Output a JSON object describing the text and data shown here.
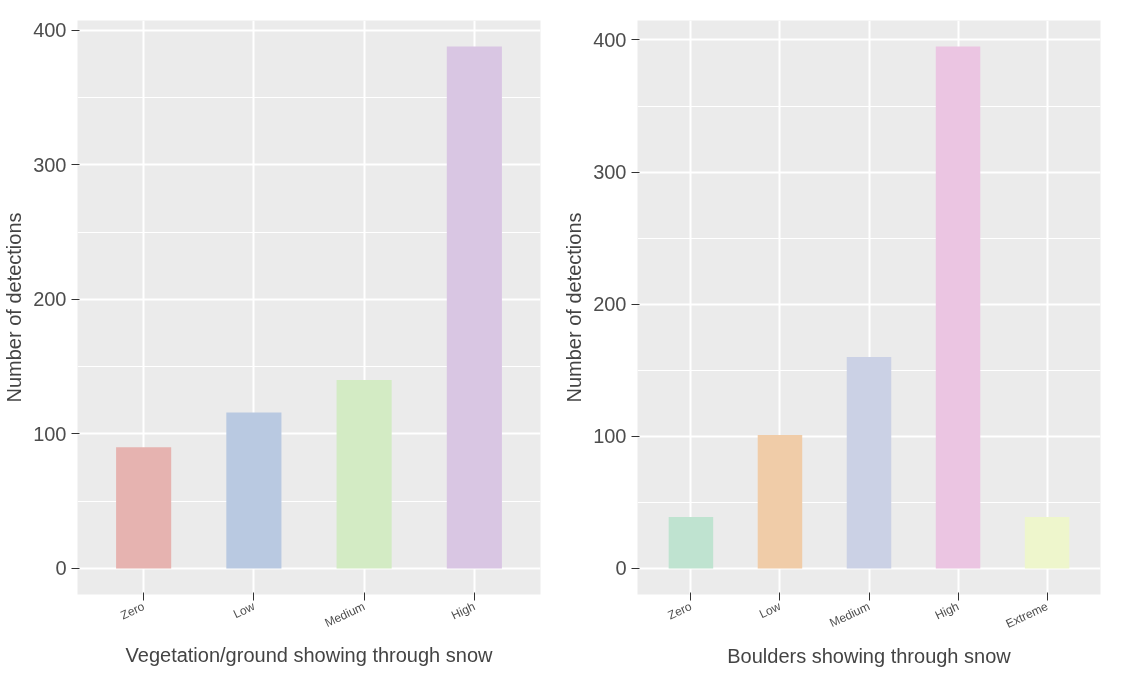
{
  "chart_data": [
    {
      "type": "bar",
      "categories": [
        "Zero",
        "Low",
        "Medium",
        "High"
      ],
      "values": [
        90,
        116,
        140,
        388
      ],
      "colors": [
        "#e6b3b0",
        "#b9c9e1",
        "#d3ebc4",
        "#d9c6e3"
      ],
      "xlabel": "Vegetation/ground showing through snow",
      "ylabel": "Number of detections",
      "ylim": [
        -19.4,
        407.4
      ],
      "yticks": [
        0,
        100,
        200,
        300,
        400
      ],
      "grid": true
    },
    {
      "type": "bar",
      "categories": [
        "Zero",
        "Low",
        "Medium",
        "High",
        "Extreme"
      ],
      "values": [
        39,
        101,
        160,
        395,
        39
      ],
      "colors": [
        "#bfe3d0",
        "#f0cca8",
        "#cbd1e5",
        "#ebc5e2",
        "#eef6cc"
      ],
      "xlabel": "Boulders showing through snow",
      "ylabel": "Number of detections",
      "ylim": [
        -19.75,
        414.75
      ],
      "yticks": [
        0,
        100,
        200,
        300,
        400
      ],
      "grid": true
    }
  ]
}
